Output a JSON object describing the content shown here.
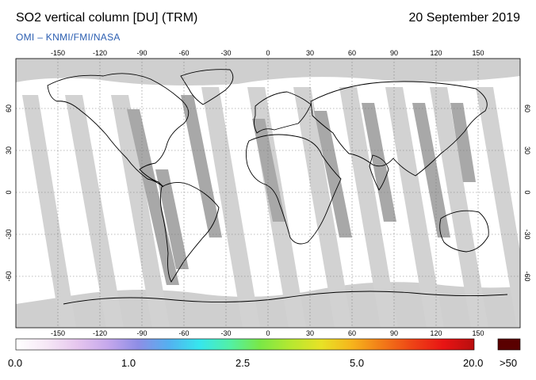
{
  "title": "SO2 vertical column [DU] (TRM)",
  "date": "20 September 2019",
  "credit": "OMI  –  KNMI/FMI/NASA",
  "lon_ticks": [
    "-150",
    "-120",
    "-90",
    "-60",
    "-30",
    "0",
    "30",
    "60",
    "90",
    "120",
    "150"
  ],
  "lat_ticks": [
    "60",
    "30",
    "0",
    "-30",
    "-60"
  ],
  "colorbar": {
    "labels": [
      "0.0",
      "1.0",
      "2.5",
      "5.0",
      "20.0"
    ],
    "overflow_label": ">50",
    "colors": [
      "#ffffff",
      "#f6e8f6",
      "#e6c6ee",
      "#c6a8ec",
      "#8e8ee6",
      "#54b0f0",
      "#36e6ee",
      "#52f0a6",
      "#7ae846",
      "#b6e830",
      "#e8e226",
      "#f6b41c",
      "#f27a18",
      "#ee4216",
      "#e81414",
      "#b80e0e"
    ],
    "overflow_color": "#5a0000"
  },
  "map_colors": {
    "ocean_land_background": "#ffffff",
    "no_data": "#cfcfcf",
    "darker_swath": "#a8a8a8",
    "coast": "#000000"
  }
}
